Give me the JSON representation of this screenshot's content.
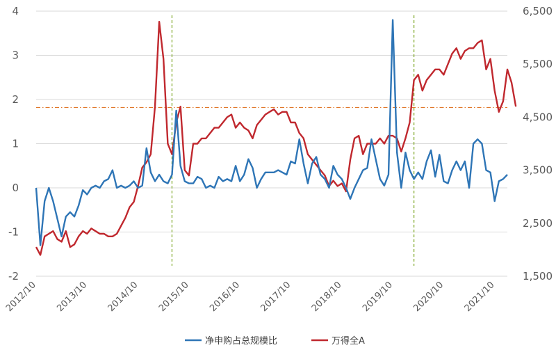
{
  "chart_data": {
    "type": "line",
    "title": "",
    "xlabel": "",
    "ylabel": "",
    "x_tick_labels": [
      "2012/10",
      "2013/10",
      "2014/10",
      "2015/10",
      "2016/10",
      "2017/10",
      "2018/10",
      "2019/10",
      "2020/10",
      "2021/10"
    ],
    "y_left": {
      "ticks": [
        4,
        3,
        2,
        1,
        0,
        -1,
        -2
      ],
      "range": [
        -2,
        4
      ]
    },
    "y_right": {
      "ticks": [
        "6,500",
        "5,500",
        "4,500",
        "3,500",
        "2,500",
        "1,500"
      ],
      "range": [
        1500,
        6500
      ]
    },
    "grid": "horizontal",
    "legend_position": "bottom",
    "reference_lines": {
      "horizontal_left_axis_value": 1.82,
      "vertical_dates": [
        "2015-06",
        "2020-03"
      ]
    },
    "series": [
      {
        "name": "净申购占总规模比",
        "axis": "left",
        "color": "#2e75b6",
        "x_start": "2012-10",
        "step_months": 1,
        "values": [
          0,
          -1.3,
          -0.3,
          0.0,
          -0.3,
          -0.7,
          -1.1,
          -0.65,
          -0.55,
          -0.65,
          -0.4,
          -0.05,
          -0.15,
          0.0,
          0.05,
          0.0,
          0.15,
          0.2,
          0.4,
          0.0,
          0.05,
          0.0,
          0.05,
          0.15,
          0.0,
          0.05,
          0.9,
          0.35,
          0.15,
          0.3,
          0.15,
          0.1,
          0.3,
          1.75,
          0.5,
          0.15,
          0.1,
          0.1,
          0.25,
          0.2,
          0.0,
          0.05,
          0.0,
          0.25,
          0.15,
          0.2,
          0.15,
          0.5,
          0.15,
          0.3,
          0.65,
          0.45,
          0.0,
          0.2,
          0.35,
          0.35,
          0.35,
          0.4,
          0.35,
          0.3,
          0.6,
          0.55,
          1.1,
          0.55,
          0.1,
          0.55,
          0.7,
          0.3,
          0.2,
          0.0,
          0.5,
          0.3,
          0.2,
          0.0,
          -0.25,
          0.0,
          0.2,
          0.4,
          0.45,
          1.1,
          0.65,
          0.2,
          0.05,
          0.3,
          3.8,
          0.8,
          0.0,
          0.8,
          0.4,
          0.2,
          0.35,
          0.2,
          0.6,
          0.85,
          0.25,
          0.75,
          0.15,
          0.1,
          0.4,
          0.6,
          0.4,
          0.6,
          0.0,
          1.0,
          1.1,
          1.0,
          0.4,
          0.35,
          -0.3,
          0.15,
          0.2,
          0.3
        ]
      },
      {
        "name": "万得全A",
        "axis": "right",
        "color": "#c0282e",
        "x_start": "2012-10",
        "step_months": 1,
        "values": [
          2050,
          1900,
          2250,
          2300,
          2350,
          2200,
          2150,
          2350,
          2050,
          2100,
          2250,
          2350,
          2300,
          2400,
          2350,
          2300,
          2300,
          2250,
          2250,
          2300,
          2450,
          2600,
          2800,
          2900,
          3200,
          3550,
          3650,
          3800,
          4700,
          6300,
          5600,
          4000,
          3800,
          4400,
          4700,
          3500,
          3400,
          4000,
          4000,
          4100,
          4100,
          4200,
          4300,
          4300,
          4400,
          4500,
          4550,
          4300,
          4400,
          4300,
          4250,
          4100,
          4350,
          4450,
          4550,
          4600,
          4650,
          4550,
          4600,
          4600,
          4400,
          4400,
          4200,
          4100,
          3800,
          3700,
          3600,
          3500,
          3400,
          3200,
          3300,
          3200,
          3250,
          3100,
          3700,
          4100,
          4150,
          3800,
          4000,
          4000,
          4000,
          4100,
          4000,
          4150,
          4150,
          4100,
          3850,
          4100,
          4400,
          5200,
          5300,
          5000,
          5200,
          5300,
          5400,
          5400,
          5300,
          5500,
          5700,
          5800,
          5600,
          5750,
          5800,
          5800,
          5900,
          5950,
          5400,
          5600,
          5000,
          4600,
          4800,
          5400,
          5150,
          4700
        ]
      }
    ]
  }
}
